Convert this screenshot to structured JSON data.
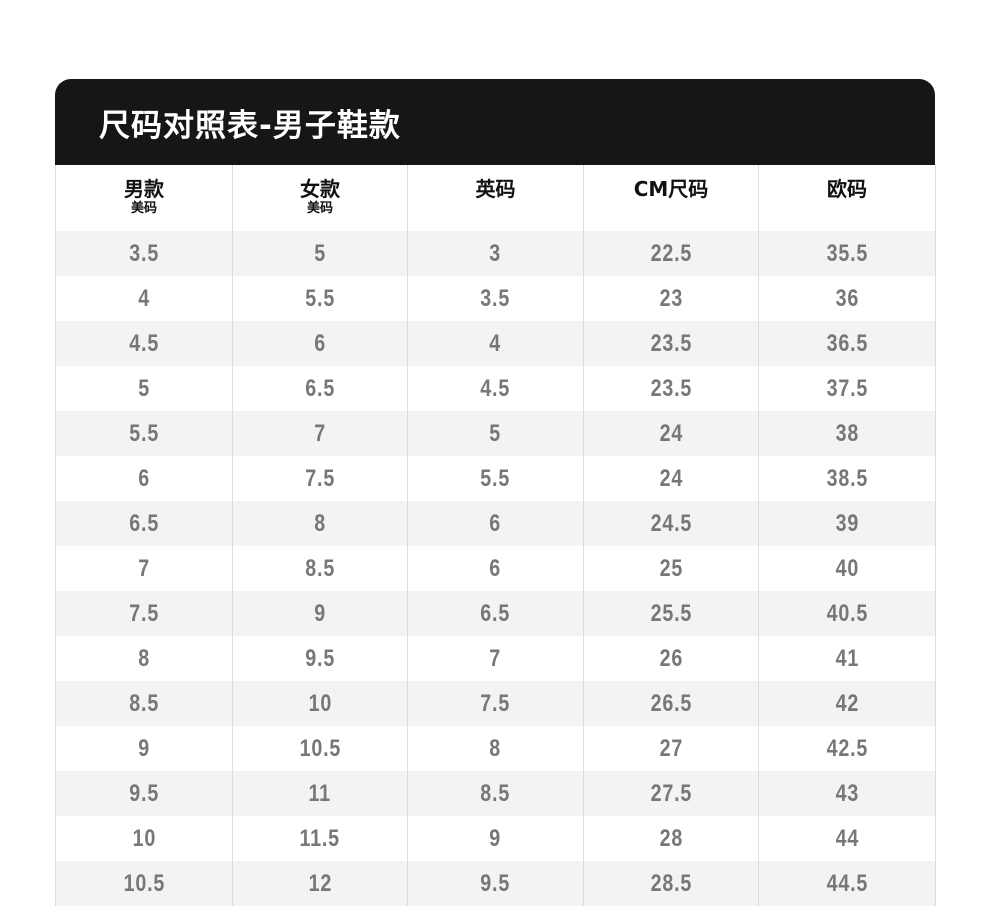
{
  "title": "尺码对照表-男子鞋款",
  "headers": [
    {
      "main": "男款",
      "sub": "美码"
    },
    {
      "main": "女款",
      "sub": "美码"
    },
    {
      "main": "英码",
      "sub": ""
    },
    {
      "main": "CM尺码",
      "sub": ""
    },
    {
      "main": "欧码",
      "sub": ""
    }
  ],
  "rows": [
    [
      "3.5",
      "5",
      "3",
      "22.5",
      "35.5"
    ],
    [
      "4",
      "5.5",
      "3.5",
      "23",
      "36"
    ],
    [
      "4.5",
      "6",
      "4",
      "23.5",
      "36.5"
    ],
    [
      "5",
      "6.5",
      "4.5",
      "23.5",
      "37.5"
    ],
    [
      "5.5",
      "7",
      "5",
      "24",
      "38"
    ],
    [
      "6",
      "7.5",
      "5.5",
      "24",
      "38.5"
    ],
    [
      "6.5",
      "8",
      "6",
      "24.5",
      "39"
    ],
    [
      "7",
      "8.5",
      "6",
      "25",
      "40"
    ],
    [
      "7.5",
      "9",
      "6.5",
      "25.5",
      "40.5"
    ],
    [
      "8",
      "9.5",
      "7",
      "26",
      "41"
    ],
    [
      "8.5",
      "10",
      "7.5",
      "26.5",
      "42"
    ],
    [
      "9",
      "10.5",
      "8",
      "27",
      "42.5"
    ],
    [
      "9.5",
      "11",
      "8.5",
      "27.5",
      "43"
    ],
    [
      "10",
      "11.5",
      "9",
      "28",
      "44"
    ],
    [
      "10.5",
      "12",
      "9.5",
      "28.5",
      "44.5"
    ]
  ]
}
